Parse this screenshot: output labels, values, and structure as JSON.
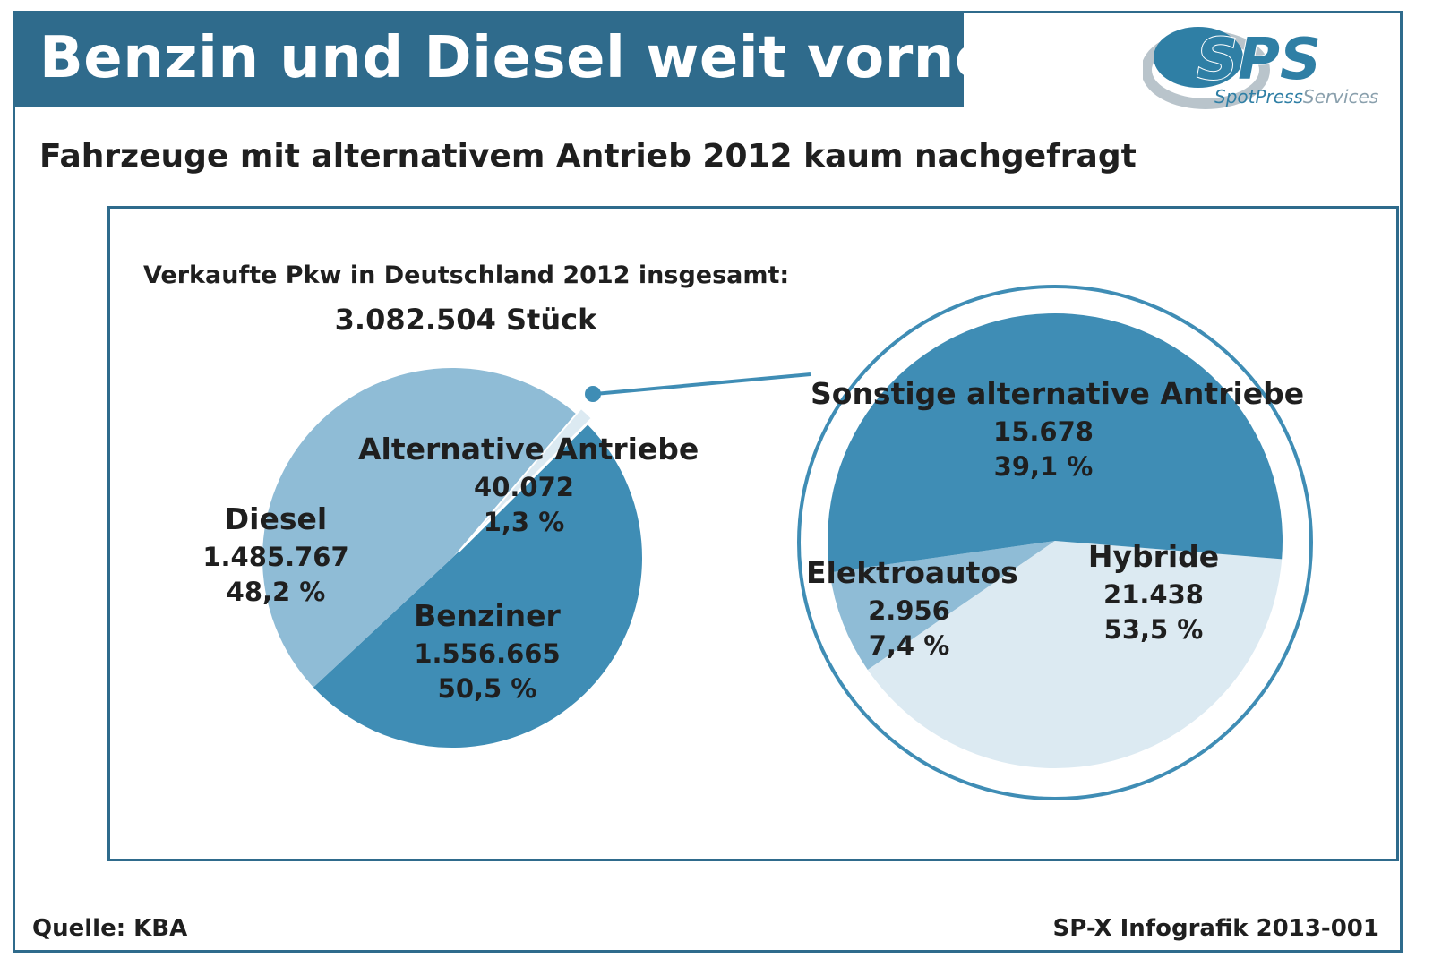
{
  "header": {
    "title": "Benzin und Diesel weit vorne",
    "subtitle": "Fahrzeuge mit alternativem Antrieb 2012 kaum nachgefragt"
  },
  "logo": {
    "mark": "SPS",
    "tagline_part1": "SpotPress",
    "tagline_part2": "Services"
  },
  "summary": {
    "label": "Verkaufte Pkw in Deutschland 2012 insgesamt:",
    "value": "3.082.504 Stück"
  },
  "footer": {
    "source": "Quelle: KBA",
    "credit": "SP-X Infografik 2013-001"
  },
  "colors": {
    "brand": "#2f6b8c",
    "dark_slice": "#3f8db5",
    "mid_slice": "#8fbcd6",
    "light_slice": "#dceaf2"
  },
  "chart_data": [
    {
      "type": "pie",
      "slices": [
        {
          "name": "Benziner",
          "value": 1556665,
          "value_label": "1.556.665",
          "percent": 50.5,
          "percent_label": "50,5 %",
          "color": "#3f8db5"
        },
        {
          "name": "Diesel",
          "value": 1485767,
          "value_label": "1.485.767",
          "percent": 48.2,
          "percent_label": "48,2 %",
          "color": "#8fbcd6"
        },
        {
          "name": "Alternative Antriebe",
          "value": 40072,
          "value_label": "40.072",
          "percent": 1.3,
          "percent_label": "1,3 %",
          "color": "#dceaf2",
          "exploded": true
        }
      ]
    },
    {
      "type": "pie",
      "slices": [
        {
          "name": "Hybride",
          "value": 21438,
          "value_label": "21.438",
          "percent": 53.5,
          "percent_label": "53,5 %",
          "color": "#3f8db5"
        },
        {
          "name": "Elektroautos",
          "value": 2956,
          "value_label": "2.956",
          "percent": 7.4,
          "percent_label": "7,4 %",
          "color": "#8fbcd6"
        },
        {
          "name": "Sonstige alternative Antriebe",
          "value": 15678,
          "value_label": "15.678",
          "percent": 39.1,
          "percent_label": "39,1 %",
          "color": "#dceaf2"
        }
      ]
    }
  ]
}
